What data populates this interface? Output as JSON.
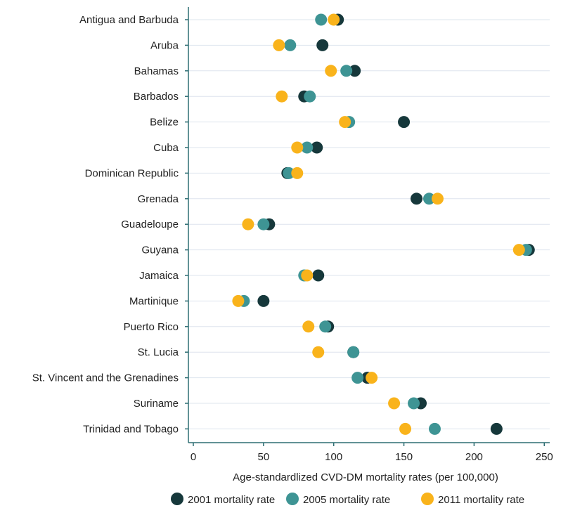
{
  "chart_data": {
    "type": "scatter",
    "xlabel": "Age-standardlized CVD-DM mortality rates (per 100,000)",
    "ylabel": "",
    "xlim": [
      0,
      250
    ],
    "xticks": [
      0,
      50,
      100,
      150,
      200,
      250
    ],
    "grid": "horizontal",
    "legend_position": "bottom",
    "categories": [
      "Antigua and Barbuda",
      "Aruba",
      "Bahamas",
      "Barbados",
      "Belize",
      "Cuba",
      "Dominican Republic",
      "Grenada",
      "Guadeloupe",
      "Guyana",
      "Jamaica",
      "Martinique",
      "Puerto Rico",
      "St. Lucia",
      "St. Vincent and the Grenadines",
      "Suriname",
      "Trinidad and Tobago"
    ],
    "series": [
      {
        "name": "2001 mortality rate",
        "color": "#16383b",
        "values": [
          103,
          92,
          115,
          79,
          150,
          88,
          67,
          159,
          54,
          239,
          89,
          50,
          96,
          114,
          124,
          162,
          216
        ]
      },
      {
        "name": "2005 mortality rate",
        "color": "#3e9494",
        "values": [
          91,
          69,
          109,
          83,
          111,
          81,
          68,
          168,
          50,
          237,
          79,
          36,
          94,
          114,
          117,
          157,
          172
        ]
      },
      {
        "name": "2011 mortality rate",
        "color": "#f9b31b",
        "values": [
          100,
          61,
          98,
          63,
          108,
          74,
          74,
          174,
          39,
          232,
          81,
          32,
          82,
          89,
          127,
          143,
          151
        ]
      }
    ]
  }
}
